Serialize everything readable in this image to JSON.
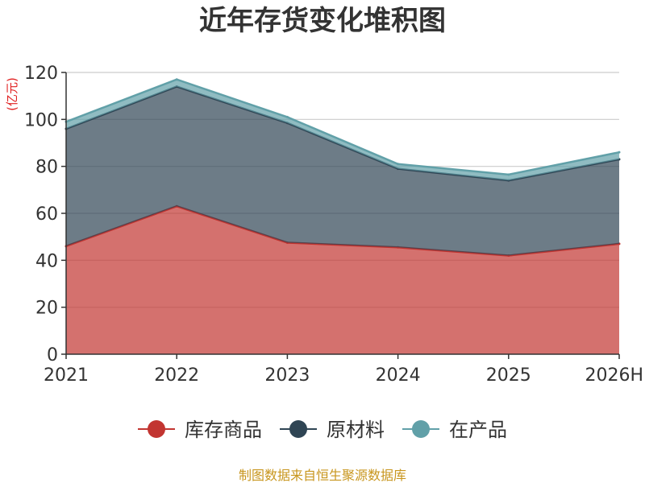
{
  "title": "近年存货变化堆积图",
  "source_note": "制图数据来自恒生聚源数据库",
  "chart_data": {
    "type": "area",
    "stacked": true,
    "title": "近年存货变化堆积图",
    "ylabel": "(亿元)",
    "xlabel": "",
    "categories": [
      "2021",
      "2022",
      "2023",
      "2024",
      "2025",
      "2026H"
    ],
    "ylim": [
      0,
      120
    ],
    "yticks": [
      0,
      20,
      40,
      60,
      80,
      100,
      120
    ],
    "grid": true,
    "legend_position": "bottom",
    "series": [
      {
        "name": "库存商品",
        "color": "#c23531",
        "values": [
          46,
          63,
          47.5,
          45.5,
          42,
          47
        ]
      },
      {
        "name": "原材料",
        "color": "#2f4554",
        "values": [
          50,
          51,
          51,
          33.5,
          32,
          36
        ]
      },
      {
        "name": "在产品",
        "color": "#61a0a8",
        "values": [
          3,
          3,
          2.5,
          2,
          2.5,
          3
        ]
      }
    ]
  }
}
